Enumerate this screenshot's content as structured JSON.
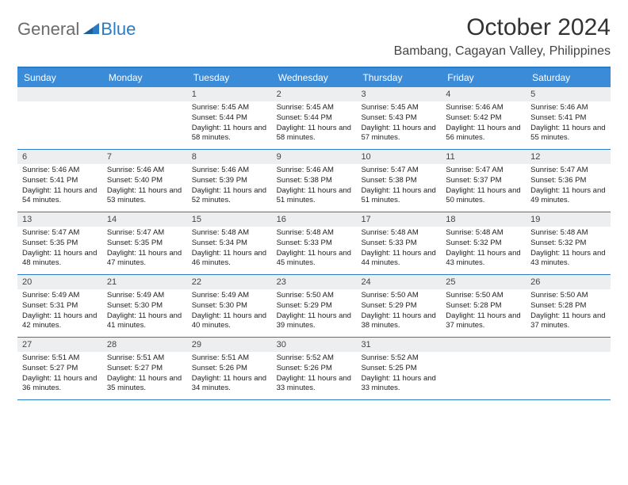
{
  "logo": {
    "general": "General",
    "blue": "Blue"
  },
  "title": "October 2024",
  "location": "Bambang, Cagayan Valley, Philippines",
  "colors": {
    "header_bg": "#3a8bd8",
    "border": "#2b7cc4",
    "daynum_bg": "#eceeef",
    "text": "#222222",
    "header_text": "#ffffff"
  },
  "day_names": [
    "Sunday",
    "Monday",
    "Tuesday",
    "Wednesday",
    "Thursday",
    "Friday",
    "Saturday"
  ],
  "weeks": [
    [
      {
        "n": "",
        "sr": "",
        "ss": "",
        "dl": ""
      },
      {
        "n": "",
        "sr": "",
        "ss": "",
        "dl": ""
      },
      {
        "n": "1",
        "sr": "Sunrise: 5:45 AM",
        "ss": "Sunset: 5:44 PM",
        "dl": "Daylight: 11 hours and 58 minutes."
      },
      {
        "n": "2",
        "sr": "Sunrise: 5:45 AM",
        "ss": "Sunset: 5:44 PM",
        "dl": "Daylight: 11 hours and 58 minutes."
      },
      {
        "n": "3",
        "sr": "Sunrise: 5:45 AM",
        "ss": "Sunset: 5:43 PM",
        "dl": "Daylight: 11 hours and 57 minutes."
      },
      {
        "n": "4",
        "sr": "Sunrise: 5:46 AM",
        "ss": "Sunset: 5:42 PM",
        "dl": "Daylight: 11 hours and 56 minutes."
      },
      {
        "n": "5",
        "sr": "Sunrise: 5:46 AM",
        "ss": "Sunset: 5:41 PM",
        "dl": "Daylight: 11 hours and 55 minutes."
      }
    ],
    [
      {
        "n": "6",
        "sr": "Sunrise: 5:46 AM",
        "ss": "Sunset: 5:41 PM",
        "dl": "Daylight: 11 hours and 54 minutes."
      },
      {
        "n": "7",
        "sr": "Sunrise: 5:46 AM",
        "ss": "Sunset: 5:40 PM",
        "dl": "Daylight: 11 hours and 53 minutes."
      },
      {
        "n": "8",
        "sr": "Sunrise: 5:46 AM",
        "ss": "Sunset: 5:39 PM",
        "dl": "Daylight: 11 hours and 52 minutes."
      },
      {
        "n": "9",
        "sr": "Sunrise: 5:46 AM",
        "ss": "Sunset: 5:38 PM",
        "dl": "Daylight: 11 hours and 51 minutes."
      },
      {
        "n": "10",
        "sr": "Sunrise: 5:47 AM",
        "ss": "Sunset: 5:38 PM",
        "dl": "Daylight: 11 hours and 51 minutes."
      },
      {
        "n": "11",
        "sr": "Sunrise: 5:47 AM",
        "ss": "Sunset: 5:37 PM",
        "dl": "Daylight: 11 hours and 50 minutes."
      },
      {
        "n": "12",
        "sr": "Sunrise: 5:47 AM",
        "ss": "Sunset: 5:36 PM",
        "dl": "Daylight: 11 hours and 49 minutes."
      }
    ],
    [
      {
        "n": "13",
        "sr": "Sunrise: 5:47 AM",
        "ss": "Sunset: 5:35 PM",
        "dl": "Daylight: 11 hours and 48 minutes."
      },
      {
        "n": "14",
        "sr": "Sunrise: 5:47 AM",
        "ss": "Sunset: 5:35 PM",
        "dl": "Daylight: 11 hours and 47 minutes."
      },
      {
        "n": "15",
        "sr": "Sunrise: 5:48 AM",
        "ss": "Sunset: 5:34 PM",
        "dl": "Daylight: 11 hours and 46 minutes."
      },
      {
        "n": "16",
        "sr": "Sunrise: 5:48 AM",
        "ss": "Sunset: 5:33 PM",
        "dl": "Daylight: 11 hours and 45 minutes."
      },
      {
        "n": "17",
        "sr": "Sunrise: 5:48 AM",
        "ss": "Sunset: 5:33 PM",
        "dl": "Daylight: 11 hours and 44 minutes."
      },
      {
        "n": "18",
        "sr": "Sunrise: 5:48 AM",
        "ss": "Sunset: 5:32 PM",
        "dl": "Daylight: 11 hours and 43 minutes."
      },
      {
        "n": "19",
        "sr": "Sunrise: 5:48 AM",
        "ss": "Sunset: 5:32 PM",
        "dl": "Daylight: 11 hours and 43 minutes."
      }
    ],
    [
      {
        "n": "20",
        "sr": "Sunrise: 5:49 AM",
        "ss": "Sunset: 5:31 PM",
        "dl": "Daylight: 11 hours and 42 minutes."
      },
      {
        "n": "21",
        "sr": "Sunrise: 5:49 AM",
        "ss": "Sunset: 5:30 PM",
        "dl": "Daylight: 11 hours and 41 minutes."
      },
      {
        "n": "22",
        "sr": "Sunrise: 5:49 AM",
        "ss": "Sunset: 5:30 PM",
        "dl": "Daylight: 11 hours and 40 minutes."
      },
      {
        "n": "23",
        "sr": "Sunrise: 5:50 AM",
        "ss": "Sunset: 5:29 PM",
        "dl": "Daylight: 11 hours and 39 minutes."
      },
      {
        "n": "24",
        "sr": "Sunrise: 5:50 AM",
        "ss": "Sunset: 5:29 PM",
        "dl": "Daylight: 11 hours and 38 minutes."
      },
      {
        "n": "25",
        "sr": "Sunrise: 5:50 AM",
        "ss": "Sunset: 5:28 PM",
        "dl": "Daylight: 11 hours and 37 minutes."
      },
      {
        "n": "26",
        "sr": "Sunrise: 5:50 AM",
        "ss": "Sunset: 5:28 PM",
        "dl": "Daylight: 11 hours and 37 minutes."
      }
    ],
    [
      {
        "n": "27",
        "sr": "Sunrise: 5:51 AM",
        "ss": "Sunset: 5:27 PM",
        "dl": "Daylight: 11 hours and 36 minutes."
      },
      {
        "n": "28",
        "sr": "Sunrise: 5:51 AM",
        "ss": "Sunset: 5:27 PM",
        "dl": "Daylight: 11 hours and 35 minutes."
      },
      {
        "n": "29",
        "sr": "Sunrise: 5:51 AM",
        "ss": "Sunset: 5:26 PM",
        "dl": "Daylight: 11 hours and 34 minutes."
      },
      {
        "n": "30",
        "sr": "Sunrise: 5:52 AM",
        "ss": "Sunset: 5:26 PM",
        "dl": "Daylight: 11 hours and 33 minutes."
      },
      {
        "n": "31",
        "sr": "Sunrise: 5:52 AM",
        "ss": "Sunset: 5:25 PM",
        "dl": "Daylight: 11 hours and 33 minutes."
      },
      {
        "n": "",
        "sr": "",
        "ss": "",
        "dl": ""
      },
      {
        "n": "",
        "sr": "",
        "ss": "",
        "dl": ""
      }
    ]
  ]
}
